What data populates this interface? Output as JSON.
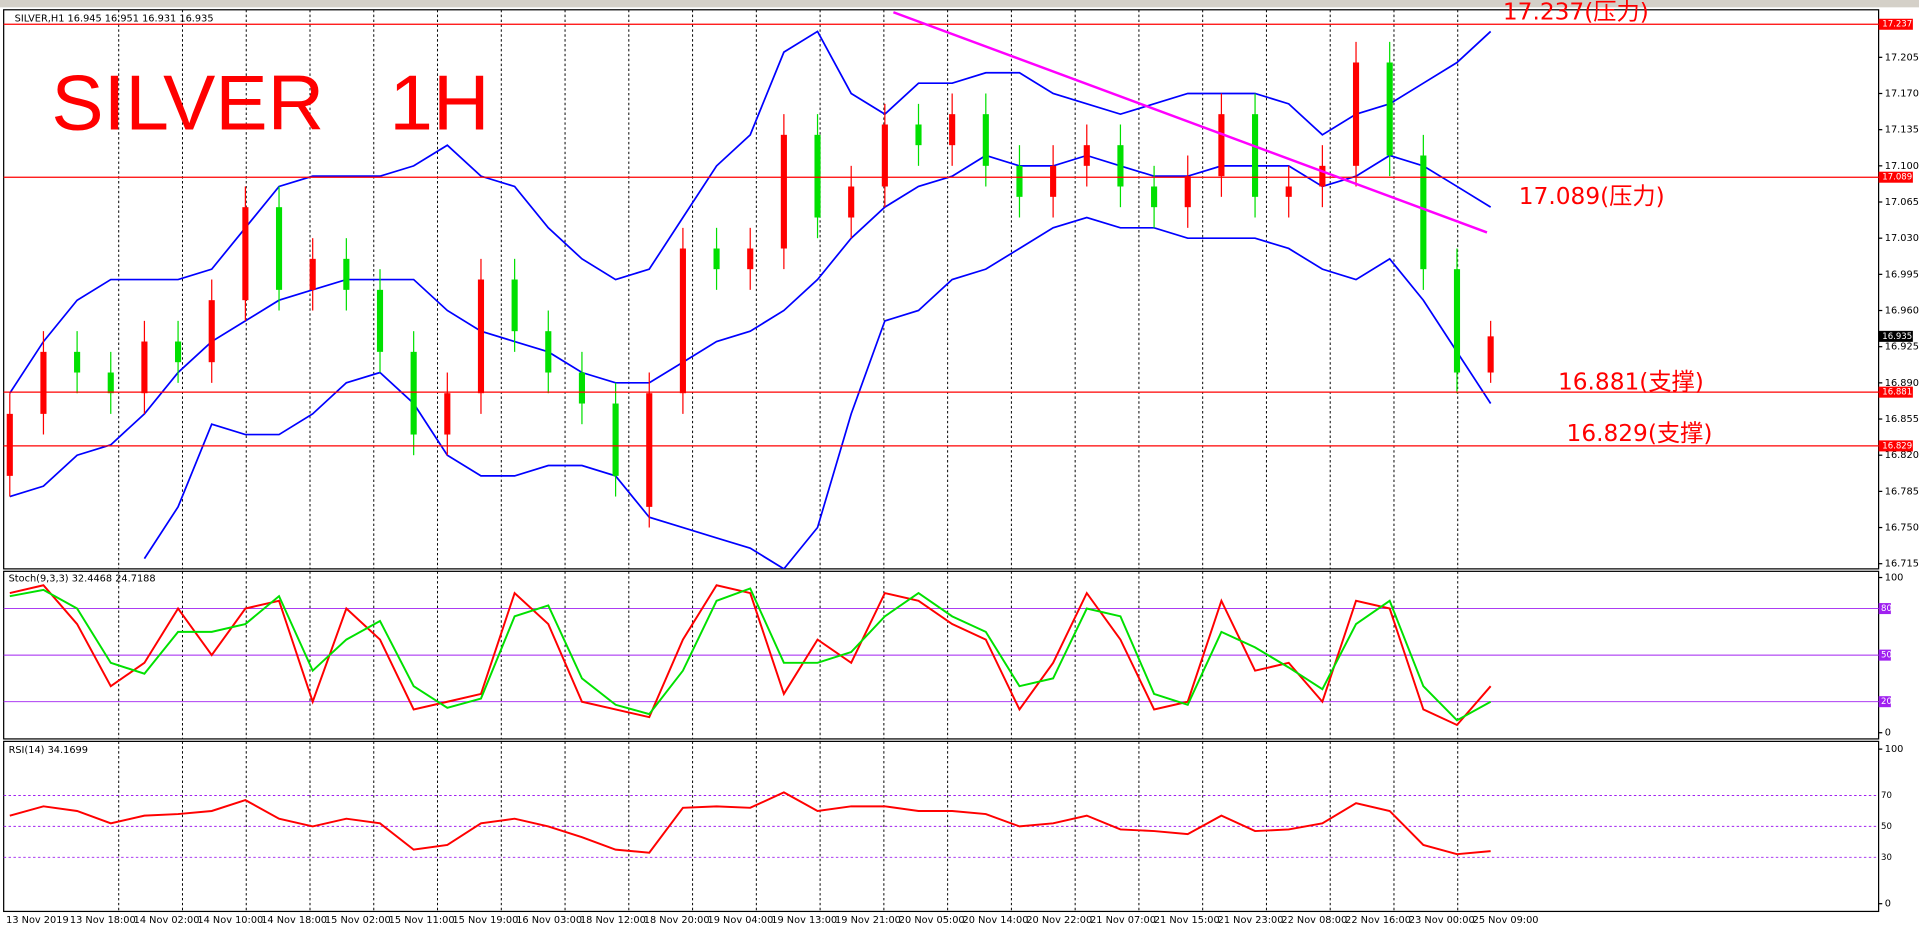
{
  "header": "SILVER,H1 16.945 16.951 16.931 16.935",
  "chart_data": [
    {
      "type": "candlestick",
      "title": "SILVER   1H",
      "open": [
        16.8,
        16.86,
        16.92,
        16.9,
        16.88,
        16.93,
        16.91,
        16.97,
        17.06,
        16.98,
        17.01,
        16.98,
        16.92,
        16.84,
        16.88,
        16.99,
        16.94,
        16.9,
        16.87,
        16.77,
        16.88,
        17.02,
        17.0,
        17.02,
        17.13,
        17.05,
        17.08,
        17.14,
        17.12,
        17.15,
        17.1,
        17.07,
        17.1,
        17.12,
        17.08,
        17.06,
        17.09,
        17.15,
        17.07,
        17.08,
        17.1,
        17.2,
        17.11,
        17.0,
        16.9
      ],
      "high": [
        16.88,
        16.94,
        16.94,
        16.92,
        16.95,
        16.95,
        16.99,
        17.08,
        17.08,
        17.03,
        17.03,
        17.0,
        16.94,
        16.9,
        17.01,
        17.01,
        16.96,
        16.92,
        16.89,
        16.9,
        17.04,
        17.04,
        17.04,
        17.15,
        17.15,
        17.1,
        17.16,
        17.16,
        17.17,
        17.17,
        17.12,
        17.12,
        17.14,
        17.14,
        17.1,
        17.11,
        17.17,
        17.17,
        17.1,
        17.12,
        17.22,
        17.22,
        17.13,
        17.02,
        16.95
      ],
      "low": [
        16.78,
        16.84,
        16.88,
        16.86,
        16.86,
        16.89,
        16.89,
        16.95,
        16.96,
        16.96,
        16.96,
        16.9,
        16.82,
        16.82,
        16.86,
        16.92,
        16.88,
        16.85,
        16.78,
        16.75,
        16.86,
        16.98,
        16.98,
        17.0,
        17.03,
        17.03,
        17.06,
        17.1,
        17.1,
        17.08,
        17.05,
        17.05,
        17.08,
        17.06,
        17.04,
        17.04,
        17.07,
        17.05,
        17.05,
        17.06,
        17.08,
        17.09,
        16.98,
        16.88,
        16.89
      ],
      "close": [
        16.86,
        16.92,
        16.9,
        16.88,
        16.93,
        16.91,
        16.97,
        17.06,
        16.98,
        17.01,
        16.98,
        16.92,
        16.84,
        16.88,
        16.99,
        16.94,
        16.9,
        16.87,
        16.8,
        16.88,
        17.02,
        17.0,
        17.02,
        17.13,
        17.05,
        17.08,
        17.14,
        17.12,
        17.15,
        17.1,
        17.07,
        17.1,
        17.12,
        17.08,
        17.06,
        17.09,
        17.15,
        17.07,
        17.08,
        17.1,
        17.2,
        17.11,
        17.0,
        16.9,
        16.935
      ],
      "up_color": "#ff0000",
      "down_color": "#00e000",
      "bands": {
        "color": "#0000ff",
        "upper": [
          16.88,
          16.93,
          16.97,
          16.99,
          16.99,
          16.99,
          17.0,
          17.04,
          17.08,
          17.09,
          17.09,
          17.09,
          17.1,
          17.12,
          17.09,
          17.08,
          17.04,
          17.01,
          16.99,
          17.0,
          17.05,
          17.1,
          17.13,
          17.21,
          17.23,
          17.17,
          17.15,
          17.18,
          17.18,
          17.19,
          17.19,
          17.17,
          17.16,
          17.15,
          17.16,
          17.17,
          17.17,
          17.17,
          17.16,
          17.13,
          17.15,
          17.16,
          17.18,
          17.2,
          17.23
        ],
        "middle": [
          16.78,
          16.79,
          16.82,
          16.83,
          16.86,
          16.9,
          16.93,
          16.95,
          16.97,
          16.98,
          16.99,
          16.99,
          16.99,
          16.96,
          16.94,
          16.93,
          16.92,
          16.9,
          16.89,
          16.89,
          16.91,
          16.93,
          16.94,
          16.96,
          16.99,
          17.03,
          17.06,
          17.08,
          17.09,
          17.11,
          17.1,
          17.1,
          17.11,
          17.1,
          17.09,
          17.09,
          17.1,
          17.1,
          17.1,
          17.08,
          17.09,
          17.11,
          17.1,
          17.08,
          17.06
        ],
        "lower": [
          null,
          null,
          null,
          null,
          16.72,
          16.77,
          16.85,
          16.84,
          16.84,
          16.86,
          16.89,
          16.9,
          16.87,
          16.82,
          16.8,
          16.8,
          16.81,
          16.81,
          16.8,
          16.76,
          16.75,
          16.74,
          16.73,
          16.71,
          16.75,
          16.86,
          16.95,
          16.96,
          16.99,
          17.0,
          17.02,
          17.04,
          17.05,
          17.04,
          17.04,
          17.03,
          17.03,
          17.03,
          17.02,
          17.0,
          16.99,
          17.01,
          16.97,
          16.92,
          16.87
        ]
      },
      "levels": [
        {
          "value": 17.237,
          "label": "17.237(压力)"
        },
        {
          "value": 17.089,
          "label": "17.089(压力)"
        },
        {
          "value": 16.881,
          "label": "16.881(支撑)"
        },
        {
          "value": 16.829,
          "label": "16.829(支撑)"
        }
      ],
      "level_color": "#ff0000",
      "last_price": 16.935,
      "ylim": [
        16.71,
        17.251
      ],
      "yticks": [
        17.205,
        {
          "value": 17.17,
          "label": "17.170"
        },
        17.135,
        {
          "value": 17.1,
          "label": "17.100"
        },
        17.065,
        {
          "value": 17.03,
          "label": "17.030"
        },
        16.995,
        {
          "value": 16.96,
          "label": "16.960"
        },
        16.925,
        {
          "value": 16.89,
          "label": "16.890"
        },
        16.855,
        {
          "value": 16.82,
          "label": "16.820"
        },
        16.785,
        {
          "value": 16.75,
          "label": "16.750"
        },
        16.715
      ],
      "x_labels": [
        "13 Nov 2019",
        "13 Nov 18:00",
        "14 Nov 02:00",
        "14 Nov 10:00",
        "14 Nov 18:00",
        "15 Nov 02:00",
        "15 Nov 11:00",
        "15 Nov 19:00",
        "16 Nov 03:00",
        "18 Nov 12:00",
        "18 Nov 20:00",
        "19 Nov 04:00",
        "19 Nov 13:00",
        "19 Nov 21:00",
        "20 Nov 05:00",
        "20 Nov 14:00",
        "20 Nov 22:00",
        "21 Nov 07:00",
        "21 Nov 15:00",
        "21 Nov 23:00",
        "22 Nov 08:00",
        "22 Nov 16:00",
        "23 Nov 00:00",
        "25 Nov 09:00"
      ]
    },
    {
      "type": "line",
      "title": "Stoch(9,3,3) 32.4468 24.7188",
      "series": [
        {
          "color": "#ff0000",
          "values": [
            90,
            95,
            70,
            30,
            45,
            80,
            50,
            80,
            85,
            20,
            80,
            60,
            15,
            20,
            25,
            90,
            70,
            20,
            15,
            10,
            60,
            95,
            90,
            25,
            60,
            45,
            90,
            85,
            70,
            60,
            15,
            45,
            90,
            60,
            15,
            20,
            85,
            40,
            45,
            20,
            85,
            80,
            15,
            5,
            30
          ]
        },
        {
          "color": "#00e000",
          "values": [
            88,
            92,
            80,
            45,
            38,
            65,
            65,
            70,
            88,
            40,
            60,
            72,
            30,
            16,
            22,
            75,
            82,
            35,
            18,
            12,
            40,
            85,
            93,
            45,
            45,
            52,
            75,
            90,
            75,
            65,
            30,
            35,
            80,
            75,
            25,
            18,
            65,
            55,
            42,
            28,
            70,
            85,
            30,
            8,
            20
          ]
        }
      ],
      "ylim": [
        -4,
        104
      ],
      "yticks": [
        0,
        100
      ],
      "levels": [
        20,
        50,
        80
      ],
      "level_color": "#a020f0",
      "level_style": "solid"
    },
    {
      "type": "line",
      "title": "RSI(14) 34.1699",
      "series": [
        {
          "color": "#ff0000",
          "values": [
            57,
            63,
            60,
            52,
            57,
            58,
            60,
            67,
            55,
            50,
            55,
            52,
            35,
            38,
            52,
            55,
            50,
            43,
            35,
            33,
            62,
            63,
            62,
            72,
            60,
            63,
            63,
            60,
            60,
            58,
            50,
            52,
            57,
            48,
            47,
            45,
            57,
            47,
            48,
            52,
            65,
            60,
            38,
            32,
            34
          ]
        }
      ],
      "ylim": [
        -5,
        105
      ],
      "yticks": [
        0,
        100
      ],
      "levels": [
        30,
        50,
        70
      ],
      "level_color": "#a020f0",
      "level_style": "dashed"
    }
  ]
}
